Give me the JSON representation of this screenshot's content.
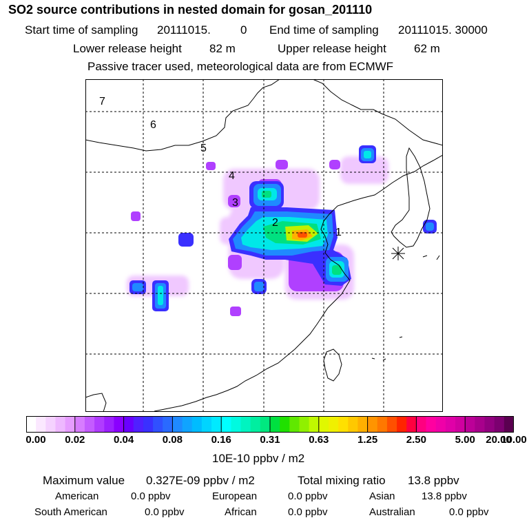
{
  "title": "SO2 source contributions in nested domain for gosan_201110",
  "sampling": {
    "start_label": "Start time of sampling",
    "start_value": "20111015.",
    "start_hour": "0",
    "end_label": "End time of sampling",
    "end_value": "20111015. 30000"
  },
  "release": {
    "lower_label": "Lower release height",
    "lower_value": "82 m",
    "upper_label": "Upper release height",
    "upper_value": "62 m"
  },
  "note": "Passive tracer used, meteorological data are from ECMWF",
  "map": {
    "labels": [
      "7",
      "6",
      "5",
      "4",
      "3",
      "2",
      "1"
    ],
    "receptor": "gosan-receptor-star"
  },
  "colorbar": {
    "ticks": [
      "0.00",
      "0.02",
      "0.04",
      "0.08",
      "0.16",
      "0.31",
      "0.63",
      "1.25",
      "2.50",
      "5.00",
      "10.00",
      "20.00"
    ],
    "unit": "10E-10 ppbv / m2",
    "colors": [
      [
        "#ffffff",
        "#fbe8ff",
        "#f5d2ff",
        "#eeb8ff",
        "#e69cff"
      ],
      [
        "#d77cff",
        "#c45cff",
        "#b03cff",
        "#9c20ff",
        "#8a00ff"
      ],
      [
        "#6a00ff",
        "#5020ff",
        "#3a30ff",
        "#3050ff",
        "#2a6aff"
      ],
      [
        "#1f8aff",
        "#10a4ff",
        "#00bcff",
        "#00d4ff",
        "#00eaff"
      ],
      [
        "#00ffff",
        "#00fae0",
        "#00f4c0",
        "#00eea0",
        "#00e880"
      ],
      [
        "#00e040",
        "#20e000",
        "#60e800",
        "#90f000",
        "#c0f800"
      ],
      [
        "#e0f800",
        "#f0f000",
        "#ffe000",
        "#ffc800",
        "#ffb000"
      ],
      [
        "#ff9400",
        "#ff7800",
        "#ff5000",
        "#ff2400",
        "#ff0040"
      ],
      [
        "#ff0080",
        "#ff00a0",
        "#f000a8",
        "#e000a8",
        "#d000a0"
      ],
      [
        "#bc0098",
        "#a8008c",
        "#920080",
        "#7c0070",
        "#5a0050"
      ]
    ]
  },
  "stats": {
    "max_label": "Maximum value",
    "max_value": "0.327E-09 ppbv / m2",
    "total_label": "Total mixing ratio",
    "total_value": "13.8 ppbv",
    "american_label": "American",
    "american_value": "0.0 ppbv",
    "european_label": "European",
    "european_value": "0.0 ppbv",
    "asian_label": "Asian",
    "asian_value": "13.8 ppbv",
    "south_american_label": "South American",
    "south_american_value": "0.0 ppbv",
    "african_label": "African",
    "african_value": "0.0 ppbv",
    "australian_label": "Australian",
    "australian_value": "0.0 ppbv"
  }
}
